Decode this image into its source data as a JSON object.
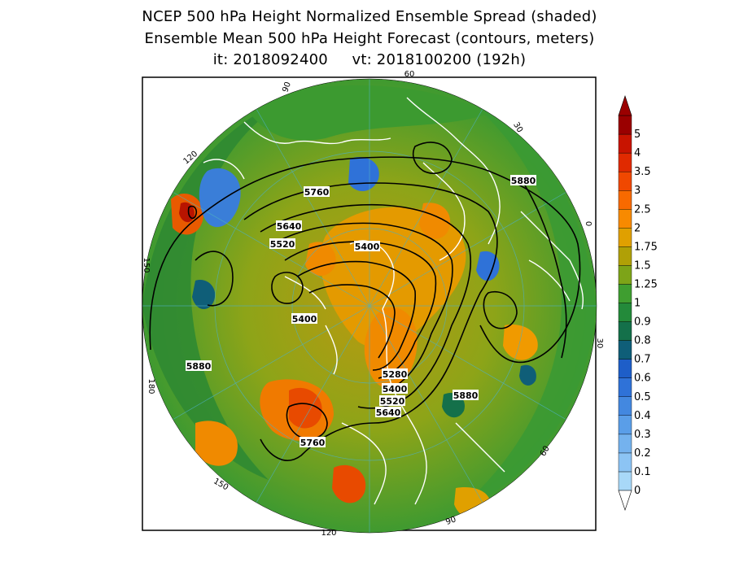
{
  "title": {
    "line1": "NCEP 500 hPa Height Normalized Ensemble Spread (shaded)",
    "line2": "Ensemble Mean 500 hPa Height Forecast (contours, meters)",
    "line3": "it: 2018092400     vt: 2018100200 (192h)"
  },
  "colorbar": {
    "levels": [
      {
        "label": "0",
        "color": "#a8d8f8"
      },
      {
        "label": "0.1",
        "color": "#8cc4f4"
      },
      {
        "label": "0.2",
        "color": "#74b2ee"
      },
      {
        "label": "0.3",
        "color": "#5a9ee8"
      },
      {
        "label": "0.4",
        "color": "#4388e0"
      },
      {
        "label": "0.5",
        "color": "#2f72d8"
      },
      {
        "label": "0.6",
        "color": "#1e5ec8"
      },
      {
        "label": "0.7",
        "color": "#0f5e78"
      },
      {
        "label": "0.8",
        "color": "#14704a"
      },
      {
        "label": "0.9",
        "color": "#238a3a"
      },
      {
        "label": "1",
        "color": "#3f9e30"
      },
      {
        "label": "1.25",
        "color": "#7da418"
      },
      {
        "label": "1.5",
        "color": "#b0a006"
      },
      {
        "label": "1.75",
        "color": "#e0a000"
      },
      {
        "label": "2",
        "color": "#f88a00"
      },
      {
        "label": "2.5",
        "color": "#f86a00"
      },
      {
        "label": "3",
        "color": "#f04800"
      },
      {
        "label": "3.5",
        "color": "#e02a00"
      },
      {
        "label": "4",
        "color": "#c81400"
      },
      {
        "label": "5",
        "color": "#9a0000"
      }
    ]
  },
  "contour_labels": [
    {
      "text": "5760"
    },
    {
      "text": "5640"
    },
    {
      "text": "5520"
    },
    {
      "text": "5400"
    },
    {
      "text": "5400"
    },
    {
      "text": "5880"
    },
    {
      "text": "5880"
    },
    {
      "text": "5280"
    },
    {
      "text": "5400"
    },
    {
      "text": "5520"
    },
    {
      "text": "5640"
    },
    {
      "text": "5760"
    },
    {
      "text": "5880"
    }
  ],
  "longitude_labels": [
    "90",
    "60",
    "30",
    "0",
    "30",
    "60",
    "90",
    "120",
    "150",
    "180",
    "150",
    "120"
  ]
}
